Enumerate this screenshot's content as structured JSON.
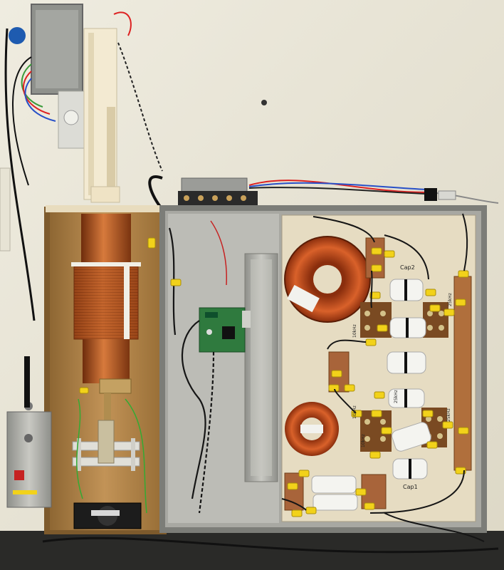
{
  "labels": {
    "cap1": "Cap1",
    "cap2": "Cap2",
    "tap_10khz_upper": "10kHz",
    "tap_25khz_upper": "25kHz",
    "tap_10khz_lower": "10kHz",
    "tap_25khz_lower": "25kHz",
    "tap_10khz_bottom": "10kHz",
    "tap_25khz_right": "25kHz"
  },
  "colors": {
    "wall": "#e9e5d6",
    "wood": "#b58a4c",
    "metal": "#9a9a94",
    "copper": "#b4541f",
    "board": "#e6dcc2",
    "pcb": "#2f7a3e",
    "wire_yellow": "#f2d21a",
    "wire_black": "#151515"
  }
}
